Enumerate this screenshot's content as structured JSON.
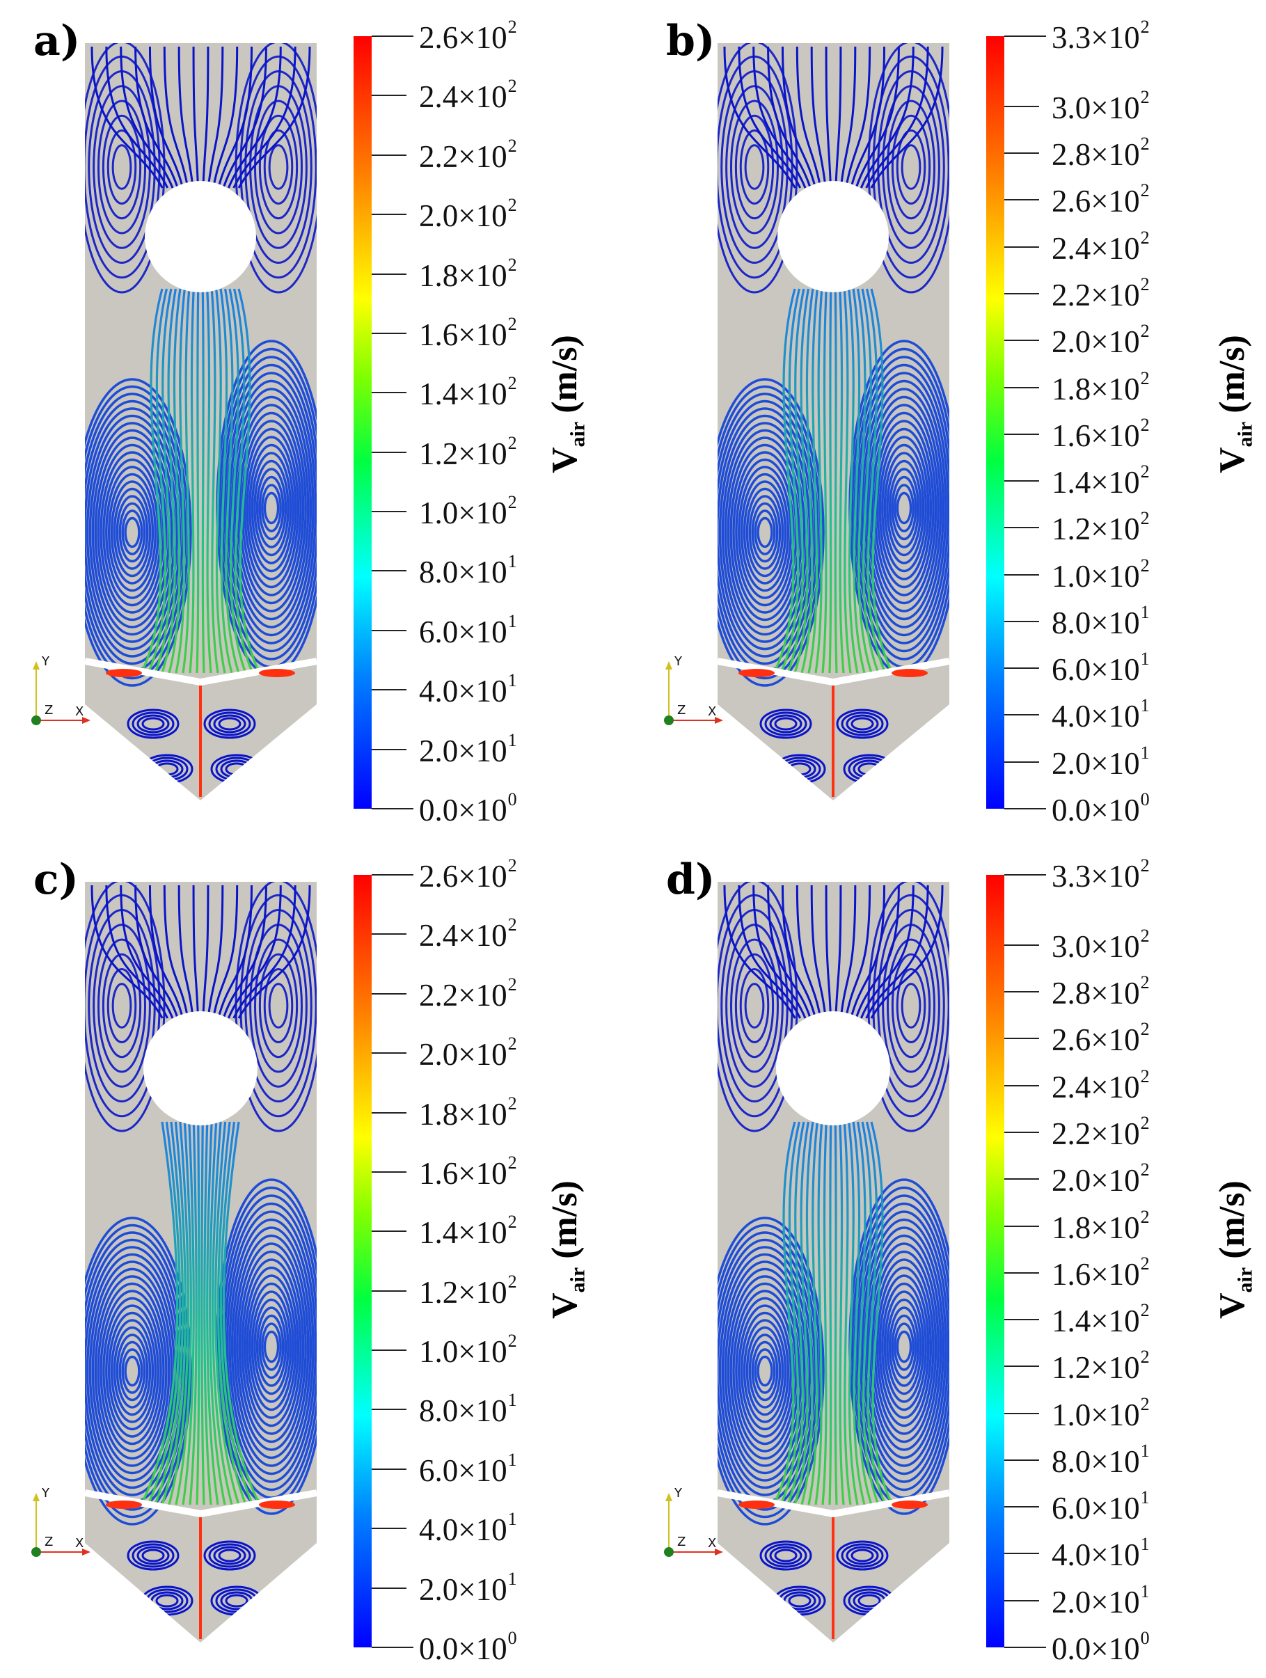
{
  "panels": [
    {
      "label": "a)",
      "colorbar": {
        "max": 260,
        "ticks": [
          {
            "m": "2.6",
            "e": "2",
            "v": 260
          },
          {
            "m": "2.4",
            "e": "2",
            "v": 240
          },
          {
            "m": "2.2",
            "e": "2",
            "v": 220
          },
          {
            "m": "2.0",
            "e": "2",
            "v": 200
          },
          {
            "m": "1.8",
            "e": "2",
            "v": 180
          },
          {
            "m": "1.6",
            "e": "2",
            "v": 160
          },
          {
            "m": "1.4",
            "e": "2",
            "v": 140
          },
          {
            "m": "1.2",
            "e": "2",
            "v": 120
          },
          {
            "m": "1.0",
            "e": "2",
            "v": 100
          },
          {
            "m": "8.0",
            "e": "1",
            "v": 80
          },
          {
            "m": "6.0",
            "e": "1",
            "v": 60
          },
          {
            "m": "4.0",
            "e": "1",
            "v": 40
          },
          {
            "m": "2.0",
            "e": "1",
            "v": 20
          },
          {
            "m": "0.0",
            "e": "0",
            "v": 0
          }
        ]
      },
      "quantity": "V",
      "quantity_sub": "air",
      "units": "(m/s)"
    },
    {
      "label": "b)",
      "colorbar": {
        "max": 330,
        "ticks": [
          {
            "m": "3.3",
            "e": "2",
            "v": 330
          },
          {
            "m": "3.0",
            "e": "2",
            "v": 300
          },
          {
            "m": "2.8",
            "e": "2",
            "v": 280
          },
          {
            "m": "2.6",
            "e": "2",
            "v": 260
          },
          {
            "m": "2.4",
            "e": "2",
            "v": 240
          },
          {
            "m": "2.2",
            "e": "2",
            "v": 220
          },
          {
            "m": "2.0",
            "e": "2",
            "v": 200
          },
          {
            "m": "1.8",
            "e": "2",
            "v": 180
          },
          {
            "m": "1.6",
            "e": "2",
            "v": 160
          },
          {
            "m": "1.4",
            "e": "2",
            "v": 140
          },
          {
            "m": "1.2",
            "e": "2",
            "v": 120
          },
          {
            "m": "1.0",
            "e": "2",
            "v": 100
          },
          {
            "m": "8.0",
            "e": "1",
            "v": 80
          },
          {
            "m": "6.0",
            "e": "1",
            "v": 60
          },
          {
            "m": "4.0",
            "e": "1",
            "v": 40
          },
          {
            "m": "2.0",
            "e": "1",
            "v": 20
          },
          {
            "m": "0.0",
            "e": "0",
            "v": 0
          }
        ]
      },
      "quantity": "V",
      "quantity_sub": "air",
      "units": "(m/s)"
    },
    {
      "label": "c)",
      "colorbar": {
        "max": 260,
        "ticks": [
          {
            "m": "2.6",
            "e": "2",
            "v": 260
          },
          {
            "m": "2.4",
            "e": "2",
            "v": 240
          },
          {
            "m": "2.2",
            "e": "2",
            "v": 220
          },
          {
            "m": "2.0",
            "e": "2",
            "v": 200
          },
          {
            "m": "1.8",
            "e": "2",
            "v": 180
          },
          {
            "m": "1.6",
            "e": "2",
            "v": 160
          },
          {
            "m": "1.4",
            "e": "2",
            "v": 140
          },
          {
            "m": "1.2",
            "e": "2",
            "v": 120
          },
          {
            "m": "1.0",
            "e": "2",
            "v": 100
          },
          {
            "m": "8.0",
            "e": "1",
            "v": 80
          },
          {
            "m": "6.0",
            "e": "1",
            "v": 60
          },
          {
            "m": "4.0",
            "e": "1",
            "v": 40
          },
          {
            "m": "2.0",
            "e": "1",
            "v": 20
          },
          {
            "m": "0.0",
            "e": "0",
            "v": 0
          }
        ]
      },
      "quantity": "V",
      "quantity_sub": "air",
      "units": "(m/s)"
    },
    {
      "label": "d)",
      "colorbar": {
        "max": 330,
        "ticks": [
          {
            "m": "3.3",
            "e": "2",
            "v": 330
          },
          {
            "m": "3.0",
            "e": "2",
            "v": 300
          },
          {
            "m": "2.8",
            "e": "2",
            "v": 280
          },
          {
            "m": "2.6",
            "e": "2",
            "v": 260
          },
          {
            "m": "2.4",
            "e": "2",
            "v": 240
          },
          {
            "m": "2.2",
            "e": "2",
            "v": 220
          },
          {
            "m": "2.0",
            "e": "2",
            "v": 200
          },
          {
            "m": "1.8",
            "e": "2",
            "v": 180
          },
          {
            "m": "1.6",
            "e": "2",
            "v": 160
          },
          {
            "m": "1.4",
            "e": "2",
            "v": 140
          },
          {
            "m": "1.2",
            "e": "2",
            "v": 120
          },
          {
            "m": "1.0",
            "e": "2",
            "v": 100
          },
          {
            "m": "8.0",
            "e": "1",
            "v": 80
          },
          {
            "m": "6.0",
            "e": "1",
            "v": 60
          },
          {
            "m": "4.0",
            "e": "1",
            "v": 40
          },
          {
            "m": "2.0",
            "e": "1",
            "v": 20
          },
          {
            "m": "0.0",
            "e": "0",
            "v": 0
          }
        ]
      },
      "quantity": "V",
      "quantity_sub": "air",
      "units": "(m/s)"
    }
  ],
  "axes": {
    "y": "Y",
    "z": "Z",
    "x": "X"
  },
  "colors": {
    "domain": "#c9c7c0",
    "streamline": "#0a14c8",
    "jet": "#10c890",
    "hot": "#ff3010"
  }
}
